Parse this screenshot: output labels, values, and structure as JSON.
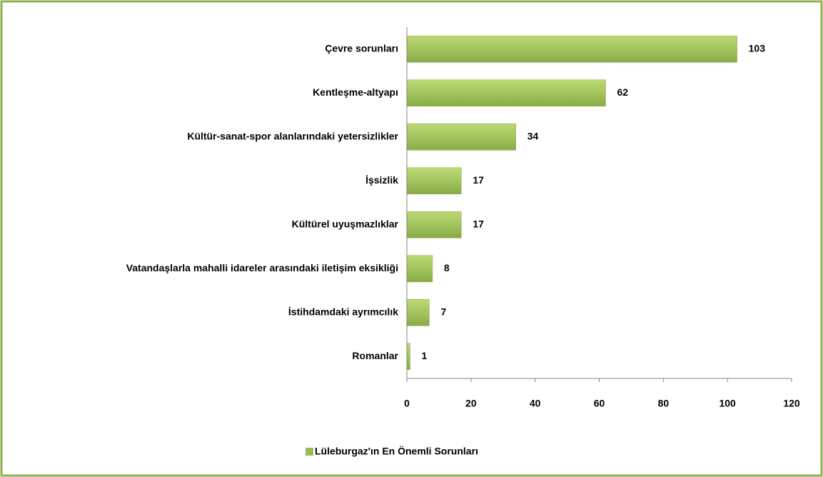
{
  "chart_data": {
    "type": "bar",
    "orientation": "horizontal",
    "categories": [
      "Çevre sorunları",
      "Kentleşme-altyapı",
      "Kültür-sanat-spor alanlarındaki yetersizlikler",
      "İşsizlik",
      "Kültürel uyuşmazlıklar",
      "Vatandaşlarla mahalli idareler arasındaki iletişim eksikliği",
      "İstihdamdaki ayrımcılık",
      "Romanlar"
    ],
    "series": [
      {
        "name": "Lüleburgaz'ın En Önemli Sorunları",
        "color": "#9bbb59",
        "values": [
          103,
          62,
          34,
          17,
          17,
          8,
          7,
          1
        ]
      }
    ],
    "xlim": [
      0,
      120
    ],
    "xticks": [
      0,
      20,
      40,
      60,
      80,
      100,
      120
    ],
    "legend": "bottom"
  }
}
